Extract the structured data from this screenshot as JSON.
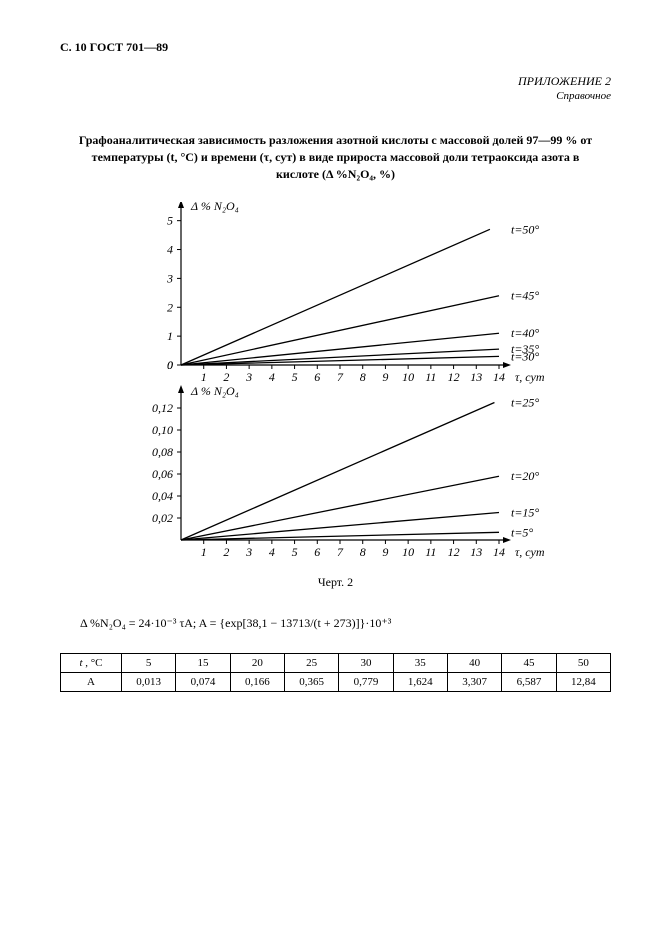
{
  "header": "С. 10 ГОСТ 701—89",
  "appendix": {
    "title": "ПРИЛОЖЕНИЕ 2",
    "sub": "Справочное"
  },
  "main_title": "Графоаналитическая зависимость разложения азотной кислоты с массовой долей 97—99 % от температуры (t, °С) и времени (τ, сут) в виде прироста массовой доли тетраоксида азота в кислоте (Δ %N₂O₄, %)",
  "top_chart": {
    "type": "line",
    "y_label": "Δ % N₂O₄",
    "x_label": "τ, сут",
    "xlim": [
      0,
      14
    ],
    "ylim": [
      0,
      5.3
    ],
    "x_ticks": [
      1,
      2,
      3,
      4,
      5,
      6,
      7,
      8,
      9,
      10,
      11,
      12,
      13,
      14
    ],
    "y_ticks": [
      0,
      1,
      2,
      3,
      4,
      5
    ],
    "axis_color": "#000000",
    "line_color": "#000000",
    "background_color": "#ffffff",
    "tick_fontsize": 12,
    "label_fontsize": 12,
    "series": [
      {
        "label": "t=50°",
        "x_end": 13.6,
        "y_end": 4.7
      },
      {
        "label": "t=45°",
        "x_end": 14.0,
        "y_end": 2.4
      },
      {
        "label": "t=40°",
        "x_end": 14.0,
        "y_end": 1.1
      },
      {
        "label": "t=35°",
        "x_end": 14.0,
        "y_end": 0.55
      },
      {
        "label": "t=30°",
        "x_end": 14.0,
        "y_end": 0.3
      }
    ]
  },
  "bottom_chart": {
    "type": "line",
    "y_label": "Δ % N₂O₄",
    "x_label": "τ, сут",
    "xlim": [
      0,
      14
    ],
    "ylim": [
      0,
      0.13
    ],
    "x_ticks": [
      1,
      2,
      3,
      4,
      5,
      6,
      7,
      8,
      9,
      10,
      11,
      12,
      13,
      14
    ],
    "y_ticks": [
      0.02,
      0.04,
      0.06,
      0.08,
      0.1,
      0.12
    ],
    "y_tick_labels": [
      "0,02",
      "0,04",
      "0,06",
      "0,08",
      "0,10",
      "0,12"
    ],
    "axis_color": "#000000",
    "line_color": "#000000",
    "background_color": "#ffffff",
    "tick_fontsize": 12,
    "label_fontsize": 12,
    "series": [
      {
        "label": "t=25°",
        "x_end": 13.8,
        "y_end": 0.125
      },
      {
        "label": "t=20°",
        "x_end": 14.0,
        "y_end": 0.058
      },
      {
        "label": "t=15°",
        "x_end": 14.0,
        "y_end": 0.025
      },
      {
        "label": "t=5°",
        "x_end": 14.0,
        "y_end": 0.007
      }
    ]
  },
  "caption": "Черт. 2",
  "formula": "Δ %N₂O₄ = 24·10⁻³ τA;  A = {exp[38,1 − 13713/(t + 273)]}·10⁺³",
  "table": {
    "header_label": "t, °С",
    "row_label": "A",
    "columns": [
      "5",
      "15",
      "20",
      "25",
      "30",
      "35",
      "40",
      "45",
      "50"
    ],
    "values": [
      "0,013",
      "0,074",
      "0,166",
      "0,365",
      "0,779",
      "1,624",
      "3,307",
      "6,587",
      "12,84"
    ]
  }
}
